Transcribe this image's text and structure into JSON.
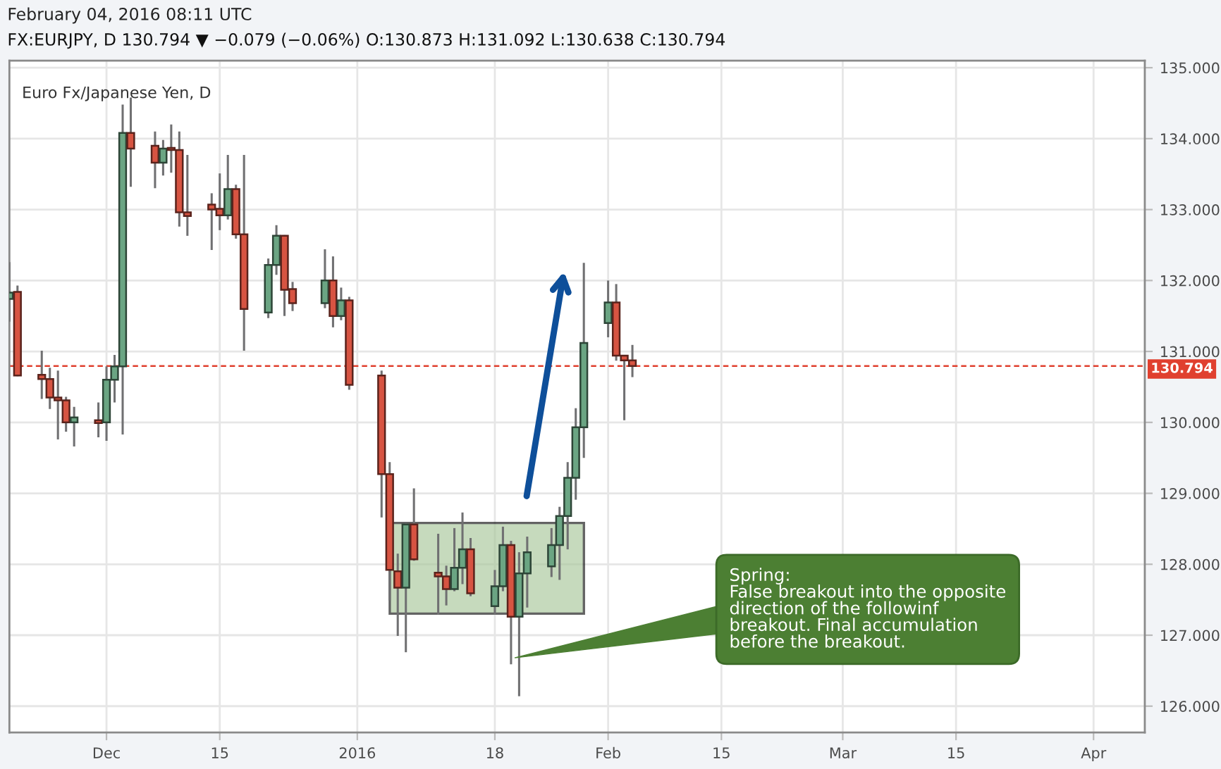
{
  "chart_data": {
    "type": "candlestick",
    "title": "FX:EURJPY, D 130.794 ▼ −0.079 (−0.06%) O:130.873 H:131.092 L:130.638 C:130.794",
    "subtitle": "Euro Fx/Japanese Yen, D",
    "annotations": [
      "February 04, 2016 08:11 UTC",
      "Spring:\nFalse breakout into the opposite\ndirection of the followinf\nbreakout. Final accumulation\nbefore the breakout."
    ],
    "x": [
      "2015-11-19",
      "2015-11-20",
      "2015-11-23",
      "2015-11-24",
      "2015-11-25",
      "2015-11-26",
      "2015-11-27",
      "2015-11-30",
      "2015-12-01",
      "2015-12-02",
      "2015-12-03",
      "2015-12-04",
      "2015-12-07",
      "2015-12-08",
      "2015-12-09",
      "2015-12-10",
      "2015-12-11",
      "2015-12-14",
      "2015-12-15",
      "2015-12-16",
      "2015-12-17",
      "2015-12-18",
      "2015-12-21",
      "2015-12-22",
      "2015-12-23",
      "2015-12-24",
      "2015-12-28",
      "2015-12-29",
      "2015-12-30",
      "2015-12-31",
      "2016-01-04",
      "2016-01-05",
      "2016-01-06",
      "2016-01-07",
      "2016-01-08",
      "2016-01-11",
      "2016-01-12",
      "2016-01-13",
      "2016-01-14",
      "2016-01-15",
      "2016-01-18",
      "2016-01-19",
      "2016-01-20",
      "2016-01-21",
      "2016-01-22",
      "2016-01-25",
      "2016-01-26",
      "2016-01-27",
      "2016-01-28",
      "2016-01-29",
      "2016-02-01",
      "2016-02-02",
      "2016-02-03",
      "2016-02-04"
    ],
    "ohlc": [
      [
        131.74,
        132.26,
        131.42,
        131.83
      ],
      [
        131.84,
        131.93,
        130.65,
        130.66
      ],
      [
        130.67,
        131.01,
        130.33,
        130.61
      ],
      [
        130.61,
        130.77,
        130.19,
        130.35
      ],
      [
        130.35,
        130.73,
        129.76,
        130.31
      ],
      [
        130.31,
        130.36,
        129.87,
        130.0
      ],
      [
        130.0,
        130.22,
        129.66,
        130.07
      ],
      [
        130.03,
        130.28,
        129.79,
        129.99
      ],
      [
        130.0,
        130.79,
        129.74,
        130.6
      ],
      [
        130.6,
        130.95,
        130.28,
        130.79
      ],
      [
        130.79,
        134.48,
        129.83,
        134.08
      ],
      [
        134.08,
        134.58,
        133.32,
        133.86
      ],
      [
        133.9,
        134.1,
        133.3,
        133.66
      ],
      [
        133.66,
        133.98,
        133.48,
        133.86
      ],
      [
        133.87,
        134.2,
        133.52,
        133.84
      ],
      [
        133.84,
        134.1,
        132.76,
        132.96
      ],
      [
        132.96,
        133.77,
        132.63,
        132.91
      ],
      [
        133.07,
        133.23,
        132.43,
        133.0
      ],
      [
        133.01,
        133.51,
        132.71,
        132.92
      ],
      [
        132.92,
        133.77,
        132.86,
        133.29
      ],
      [
        133.29,
        133.35,
        132.59,
        132.65
      ],
      [
        132.65,
        133.77,
        131.01,
        131.6
      ],
      [
        131.55,
        132.31,
        131.47,
        132.22
      ],
      [
        132.22,
        132.78,
        132.08,
        132.63
      ],
      [
        132.63,
        132.64,
        131.5,
        131.87
      ],
      [
        131.88,
        131.98,
        131.57,
        131.68
      ],
      [
        131.68,
        132.44,
        131.61,
        132.0
      ],
      [
        132.0,
        132.34,
        131.34,
        131.5
      ],
      [
        131.5,
        131.9,
        131.44,
        131.72
      ],
      [
        131.72,
        131.77,
        130.46,
        130.53
      ],
      [
        130.66,
        130.73,
        128.66,
        129.27
      ],
      [
        129.27,
        129.44,
        127.49,
        127.92
      ],
      [
        127.9,
        128.15,
        126.99,
        127.67
      ],
      [
        127.67,
        128.58,
        126.76,
        128.56
      ],
      [
        128.56,
        129.07,
        128.05,
        128.07
      ],
      [
        127.88,
        128.43,
        127.29,
        127.83
      ],
      [
        127.83,
        127.98,
        127.42,
        127.65
      ],
      [
        127.65,
        128.51,
        127.62,
        127.95
      ],
      [
        127.95,
        128.73,
        127.72,
        128.21
      ],
      [
        128.21,
        128.37,
        127.55,
        127.59
      ],
      [
        127.41,
        127.92,
        127.29,
        127.69
      ],
      [
        127.69,
        128.53,
        127.62,
        128.27
      ],
      [
        128.27,
        128.33,
        126.59,
        127.26
      ],
      [
        127.26,
        128.17,
        126.14,
        127.87
      ],
      [
        127.87,
        128.39,
        127.39,
        128.17
      ],
      [
        127.97,
        128.51,
        127.82,
        128.27
      ],
      [
        128.27,
        128.81,
        127.78,
        128.68
      ],
      [
        128.68,
        129.44,
        128.21,
        129.22
      ],
      [
        129.22,
        130.2,
        128.91,
        129.93
      ],
      [
        129.93,
        132.25,
        129.5,
        131.12
      ],
      [
        131.4,
        132.0,
        131.2,
        131.69
      ],
      [
        131.69,
        131.95,
        130.87,
        130.94
      ],
      [
        130.94,
        130.95,
        130.03,
        130.873
      ],
      [
        130.873,
        131.092,
        130.638,
        130.794
      ]
    ],
    "colors": [
      "#6ba583",
      "#d75442",
      "#d75442",
      "#d75442",
      "#d75442",
      "#d75442",
      "#6ba583",
      "#d75442",
      "#6ba583",
      "#6ba583",
      "#6ba583",
      "#d75442",
      "#d75442",
      "#6ba583",
      "#d75442",
      "#d75442",
      "#d75442",
      "#d75442",
      "#d75442",
      "#6ba583",
      "#d75442",
      "#d75442",
      "#6ba583",
      "#6ba583",
      "#d75442",
      "#d75442",
      "#6ba583",
      "#d75442",
      "#6ba583",
      "#d75442",
      "#d75442",
      "#d75442",
      "#d75442",
      "#6ba583",
      "#d75442",
      "#d75442",
      "#d75442",
      "#6ba583",
      "#6ba583",
      "#d75442",
      "#6ba583",
      "#6ba583",
      "#d75442",
      "#6ba583",
      "#6ba583",
      "#6ba583",
      "#6ba583",
      "#6ba583",
      "#6ba583",
      "#6ba583",
      "#6ba583",
      "#d75442",
      "#d75442",
      "#d75442"
    ],
    "xlim": [
      "2015-11-19",
      "2016-04-07T08:00"
    ],
    "xticks": [
      {
        "value": "2015-12-01",
        "label": "Dec"
      },
      {
        "value": "2015-12-15",
        "label": "15"
      },
      {
        "value": "2016-01-01",
        "label": "2016"
      },
      {
        "value": "2016-01-18",
        "label": "18"
      },
      {
        "value": "2016-02-01",
        "label": "Feb"
      },
      {
        "value": "2016-02-15",
        "label": "15"
      },
      {
        "value": "2016-03-01",
        "label": "Mar"
      },
      {
        "value": "2016-03-15",
        "label": "15"
      },
      {
        "value": "2016-04-01",
        "label": "Apr"
      }
    ],
    "ylim": [
      125.63,
      135.1
    ],
    "yticks": [
      {
        "value": 126,
        "label": "126.000"
      },
      {
        "value": 127,
        "label": "127.000"
      },
      {
        "value": 128,
        "label": "128.000"
      },
      {
        "value": 129,
        "label": "129.000"
      },
      {
        "value": 130,
        "label": "130.000"
      },
      {
        "value": 131,
        "label": "131.000"
      },
      {
        "value": 132,
        "label": "132.000"
      },
      {
        "value": 133,
        "label": "133.000"
      },
      {
        "value": 134,
        "label": "134.000"
      },
      {
        "value": 135,
        "label": "135.000"
      }
    ],
    "grid": true,
    "ref_lines": [
      {
        "axis": "y",
        "value": 130.794,
        "label": "130.794",
        "color": "#e0402f",
        "line_style": "dashed"
      }
    ]
  }
}
